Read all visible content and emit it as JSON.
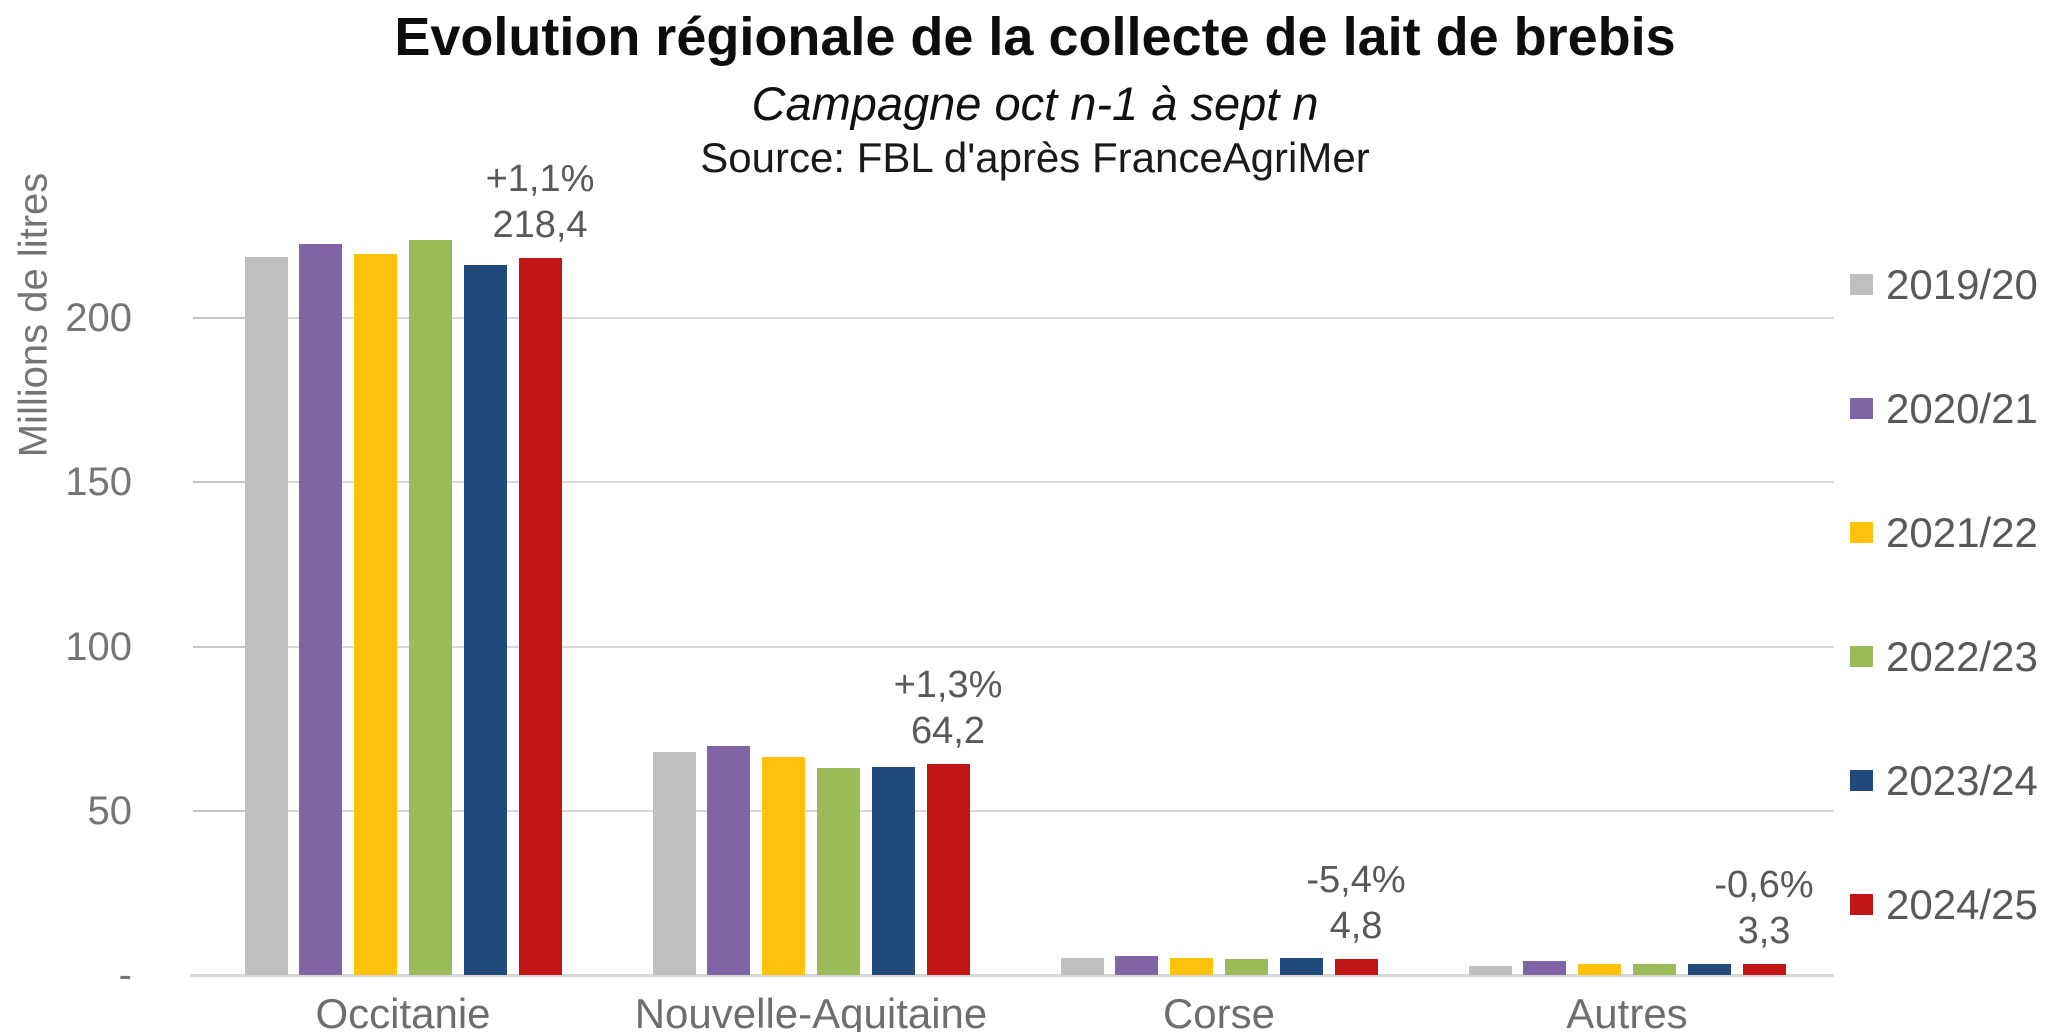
{
  "chart_data": {
    "type": "bar",
    "title": "Evolution régionale de la collecte de lait de brebis",
    "subtitle": "Campagne oct n-1 à sept n",
    "source": "Source: FBL d'après FranceAgriMer",
    "ylabel": "Millions de litres",
    "xlabel": "",
    "categories": [
      "Occitanie",
      "Nouvelle-Aquitaine",
      "Corse",
      "Autres"
    ],
    "series": [
      {
        "name": "2019/20",
        "color": "#bfbfbf",
        "values": [
          218.7,
          67.8,
          5.3,
          2.6
        ]
      },
      {
        "name": "2020/21",
        "color": "#8065a6",
        "values": [
          222.6,
          69.6,
          5.8,
          4.3
        ]
      },
      {
        "name": "2021/22",
        "color": "#fec20b",
        "values": [
          219.6,
          66.3,
          5.3,
          3.5
        ]
      },
      {
        "name": "2022/23",
        "color": "#9bbb59",
        "values": [
          223.6,
          62.9,
          5.0,
          3.5
        ]
      },
      {
        "name": "2023/24",
        "color": "#21497b",
        "values": [
          216.0,
          63.4,
          5.1,
          3.3
        ]
      },
      {
        "name": "2024/25",
        "color": "#c21616",
        "values": [
          218.4,
          64.2,
          4.8,
          3.3
        ]
      }
    ],
    "annotations": [
      {
        "category": "Occitanie",
        "pct": "+1,1%",
        "value": "218,4"
      },
      {
        "category": "Nouvelle-Aquitaine",
        "pct": "+1,3%",
        "value": "64,2"
      },
      {
        "category": "Corse",
        "pct": "-5,4%",
        "value": "4,8"
      },
      {
        "category": "Autres",
        "pct": "-0,6%",
        "value": "3,3"
      }
    ],
    "yticks": [
      {
        "v": 200,
        "label": "200"
      },
      {
        "v": 150,
        "label": "150"
      },
      {
        "v": 100,
        "label": "100"
      },
      {
        "v": 50,
        "label": "50"
      },
      {
        "v": 0,
        "label": "-"
      }
    ],
    "ylim": [
      0,
      226
    ],
    "grid": true,
    "legend_position": "right"
  }
}
